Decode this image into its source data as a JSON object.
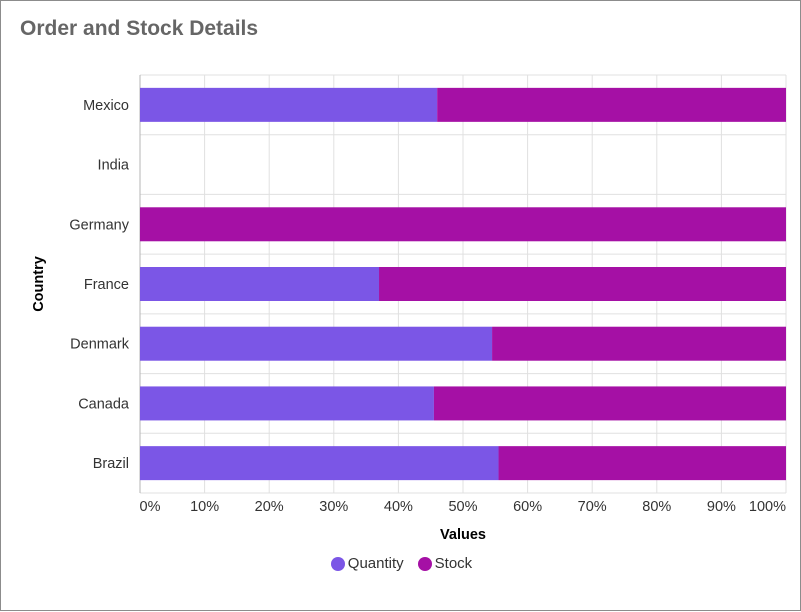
{
  "title": "Order and Stock Details",
  "chart_data": {
    "type": "bar",
    "orientation": "horizontal",
    "stacking": "100%",
    "categories": [
      "Brazil",
      "Canada",
      "Denmark",
      "France",
      "Germany",
      "India",
      "Mexico"
    ],
    "series": [
      {
        "name": "Quantity",
        "color": "#7b56e6",
        "values": [
          55.5,
          45.5,
          54.5,
          37.0,
          0,
          0,
          46.0
        ]
      },
      {
        "name": "Stock",
        "color": "#a510a5",
        "values": [
          44.5,
          54.5,
          45.5,
          63.0,
          100,
          0,
          54.0
        ]
      }
    ],
    "xlabel": "Values",
    "ylabel": "Country",
    "xlim": [
      0,
      100
    ],
    "xticks": [
      "0%",
      "10%",
      "20%",
      "30%",
      "40%",
      "50%",
      "60%",
      "70%",
      "80%",
      "90%",
      "100%"
    ],
    "grid": true,
    "legend_position": "bottom"
  }
}
